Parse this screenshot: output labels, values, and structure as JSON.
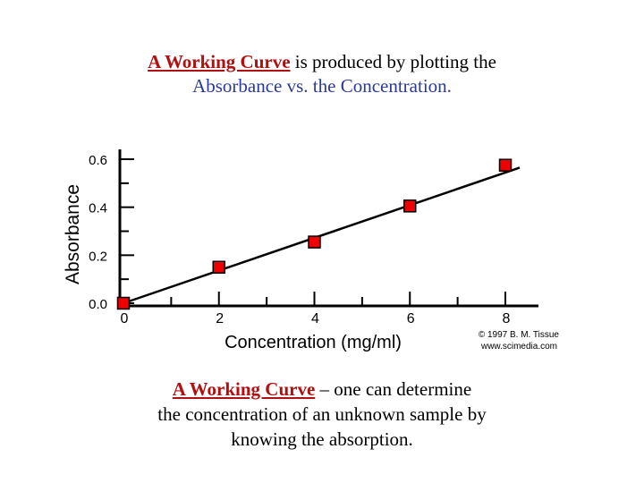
{
  "top_caption": {
    "highlight": "A Working Curve",
    "line1_rest": " is produced by plotting the",
    "line2": "Absorbance vs. the Concentration."
  },
  "bottom_caption": {
    "highlight": "A Working Curve",
    "line1_rest": " – one can determine",
    "line2": "the concentration of an unknown sample by",
    "line3": "knowing the absorption."
  },
  "credit": {
    "line1": "© 1997 B. M. Tissue",
    "line2": "www.scimedia.com"
  },
  "colors": {
    "accent": "#b01010",
    "blue_text": "#2a3a9c",
    "marker_fill": "#ee0000",
    "axis": "#000000"
  },
  "chart_data": {
    "type": "scatter",
    "xlabel": "Concentration (mg/ml)",
    "ylabel": "Absorbance",
    "xlim": [
      0,
      8.3
    ],
    "ylim": [
      0,
      0.6
    ],
    "x_ticks": [
      "0",
      "2",
      "4",
      "6",
      "8"
    ],
    "y_ticks": [
      "0.0",
      "0.2",
      "0.4",
      "0.6"
    ],
    "series": [
      {
        "x": [
          0,
          2,
          4,
          6,
          8
        ],
        "y": [
          0.0,
          0.15,
          0.255,
          0.405,
          0.575
        ]
      }
    ],
    "fit_line": {
      "x": [
        0,
        8.3
      ],
      "y": [
        0.0,
        0.565
      ]
    },
    "grid": false,
    "legend": "none"
  }
}
